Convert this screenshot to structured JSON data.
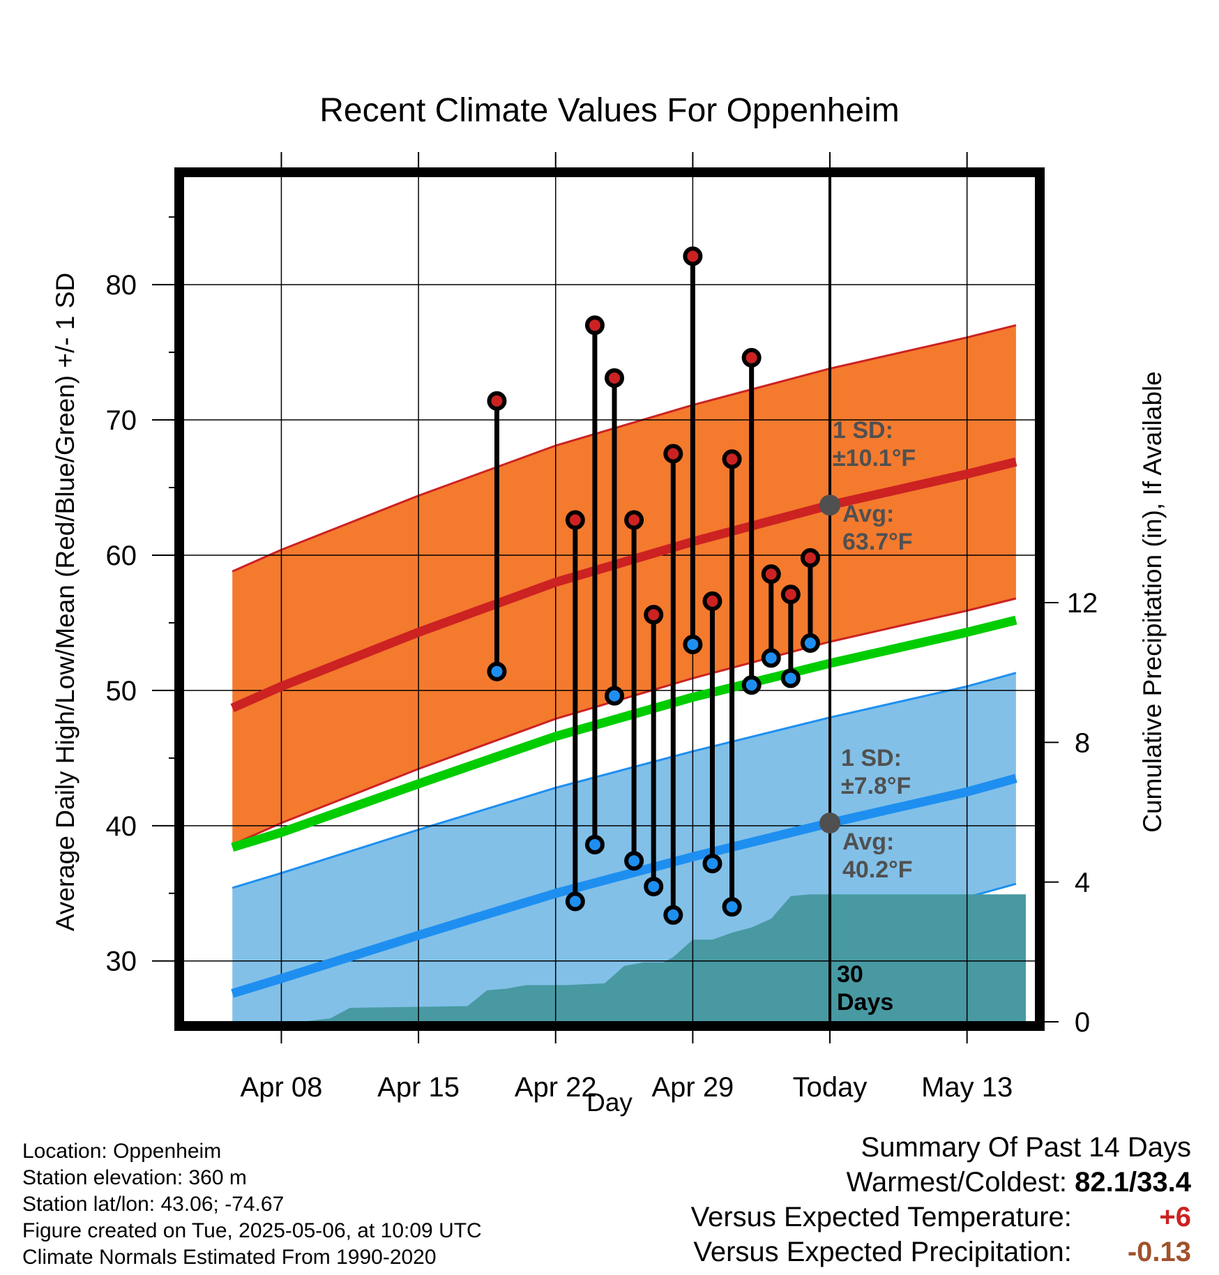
{
  "chart_data": {
    "type": "line",
    "title": "Recent Climate Values For Oppenheim",
    "xlabel": "Day",
    "ylabel": "Average Daily High/Low/Mean (Red/Blue/Green) +/- 1 SD",
    "y2label": "Cumulative Precipitation (in), If Available",
    "x_day_range": [
      -33.0,
      10.5
    ],
    "ylim": [
      25.5,
      88
    ],
    "y2lim": [
      0,
      24.2
    ],
    "grid": true,
    "x_ticks": [
      {
        "day": -28,
        "label": "Apr 08"
      },
      {
        "day": -21,
        "label": "Apr 15"
      },
      {
        "day": -14,
        "label": "Apr 22"
      },
      {
        "day": -7,
        "label": "Apr 29"
      },
      {
        "day": 0,
        "label": "Today"
      },
      {
        "day": 7,
        "label": "May 13"
      }
    ],
    "y_ticks": [
      30,
      40,
      50,
      60,
      70,
      80
    ],
    "y2_ticks": [
      0,
      4,
      8,
      12
    ],
    "normals": {
      "day": [
        -30.5,
        -28,
        -21,
        -14,
        -7,
        0,
        7,
        9.5
      ],
      "high_mean": [
        48.7,
        50.3,
        54.3,
        58.0,
        61.0,
        63.7,
        66.0,
        66.9
      ],
      "high_sd": 10.1,
      "low_mean": [
        27.6,
        28.7,
        31.9,
        35.0,
        37.7,
        40.2,
        42.5,
        43.5
      ],
      "low_sd": 7.8,
      "daily_mean": [
        38.4,
        39.5,
        43.1,
        46.6,
        49.5,
        52.0,
        54.3,
        55.2
      ]
    },
    "series": [
      {
        "name": "High",
        "days": [
          -17,
          -13,
          -12,
          -11,
          -10,
          -9,
          -8,
          -7,
          -6,
          -5,
          -4,
          -3,
          -2,
          -1
        ],
        "values": [
          71.4,
          62.6,
          77.0,
          73.1,
          62.6,
          55.6,
          67.5,
          82.1,
          56.6,
          67.1,
          74.6,
          58.6,
          57.1,
          59.8
        ]
      },
      {
        "name": "Low",
        "days": [
          -17,
          -13,
          -12,
          -11,
          -10,
          -9,
          -8,
          -7,
          -6,
          -5,
          -4,
          -3,
          -2,
          -1
        ],
        "values": [
          51.4,
          34.4,
          38.6,
          49.6,
          37.4,
          35.5,
          33.4,
          53.4,
          37.2,
          34.0,
          50.4,
          52.4,
          50.9,
          53.5
        ]
      },
      {
        "name": "Cumulative Precipitation",
        "days": [
          -30.5,
          -27,
          -25.5,
          -24.5,
          -18.5,
          -17.5,
          -16.5,
          -15.5,
          -14.5,
          -13.5,
          -11.5,
          -10.5,
          -9.5,
          -8.5,
          -8.0,
          -7.0,
          -6.0,
          -5.0,
          -4.0,
          -3.0,
          -2.0,
          -1.0,
          0,
          10
        ],
        "values": [
          0,
          0,
          0.1,
          0.4,
          0.45,
          0.9,
          0.95,
          1.05,
          1.05,
          1.05,
          1.1,
          1.6,
          1.7,
          1.7,
          1.85,
          2.35,
          2.35,
          2.55,
          2.7,
          2.95,
          3.6,
          3.65,
          3.65,
          3.65
        ]
      }
    ],
    "annotations": {
      "high_sd": "1 SD:\n±10.1°F",
      "high_avg": "Avg:\n63.7°F",
      "low_sd": "1 SD:\n±7.8°F",
      "low_avg": "Avg:\n40.2°F",
      "window": "30\nDays"
    },
    "colors": {
      "high_band": "#f47a2e",
      "high_line": "#cc2222",
      "low_band": "#82c0e8",
      "low_line": "#1e8ff0",
      "mean_line": "#00cc00",
      "precip": "#4899a2",
      "high_point": "#cc2222",
      "low_point": "#1e8ff0",
      "annotation": "#505050"
    }
  },
  "footer": {
    "location": "Location: Oppenheim",
    "elevation": "Station elevation: 360 m",
    "latlon": "Station lat/lon: 43.06; -74.67",
    "created": "Figure created on Tue, 2025-05-06, at 10:09 UTC",
    "normals": "Climate Normals Estimated From 1990-2020"
  },
  "summary": {
    "heading": "Summary Of Past 14 Days",
    "warmest_label": "Warmest/Coldest:",
    "warmest_value": "82.1/33.4",
    "temp_label": "Versus Expected Temperature:",
    "temp_value": "+6",
    "temp_color": "#cc2222",
    "precip_label": "Versus Expected Precipitation:",
    "precip_value": "-0.13",
    "precip_color": "#a0522d"
  }
}
